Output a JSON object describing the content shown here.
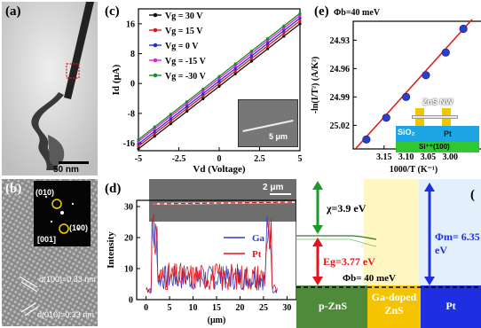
{
  "panels": {
    "a": {
      "label": "(a)",
      "scalebar": "50 nm"
    },
    "b": {
      "label": "(b)",
      "spots": [
        "(010)",
        "(100)"
      ],
      "zone": "[001]",
      "d1": "d(100)=0.33 nm",
      "d2": "d(010)=0.33 nm"
    },
    "c": {
      "label": "(c)",
      "inset_scalebar": "5 μm"
    },
    "d": {
      "label": "(d)",
      "scalebar": "2 μm"
    },
    "e": {
      "label": "(e)",
      "barrier": "Φb=40 meV",
      "inset": {
        "nw": "ZnS NW",
        "pt": "Pt",
        "sio2": "SiO₂",
        "si": "Si⁺⁺(100)"
      }
    },
    "f": {
      "label": "(",
      "chi": "χ=3.9 eV",
      "eg": "Eg=3.77 eV",
      "phib": "Φb= 40 meV",
      "phim": "Φm= 6.35 eV",
      "materials": [
        "p-ZnS",
        "Ga-doped\nZnS",
        "Pt"
      ]
    }
  },
  "colors": {
    "ga": "#2a3cd1",
    "pt": "#e0161a",
    "fit": "#e02020",
    "point": "#2a3fcf"
  },
  "chart_data": [
    {
      "type": "line",
      "xlabel": "Vd (Voltage)",
      "ylabel": "Id (μA)",
      "xlim": [
        -5,
        5
      ],
      "ylim": [
        -18,
        20
      ],
      "xticks": [
        -5,
        -2.5,
        0,
        2.5,
        5
      ],
      "xtick_labels": [
        "-5",
        "-2.5",
        "0",
        "2.5",
        "5"
      ],
      "yticks": [
        16,
        8,
        0,
        -8,
        -16
      ],
      "ytick_labels": [
        "16",
        "8",
        "0",
        "-8",
        "-16"
      ],
      "series": [
        {
          "name": "Vg = 30 V",
          "color": "#111111",
          "x": [
            -5,
            5
          ],
          "y": [
            -17.5,
            16
          ]
        },
        {
          "name": "Vg = 15 V",
          "color": "#e0161a",
          "x": [
            -5,
            5
          ],
          "y": [
            -16.8,
            16.8
          ]
        },
        {
          "name": "Vg = 0 V",
          "color": "#1f2fd6",
          "x": [
            -5,
            5
          ],
          "y": [
            -16.2,
            17.5
          ]
        },
        {
          "name": "Vg = -15 V",
          "color": "#e11fe0",
          "x": [
            -5,
            5
          ],
          "y": [
            -15.5,
            18.2
          ]
        },
        {
          "name": "Vg = -30 V",
          "color": "#1c8a2a",
          "x": [
            -5,
            5
          ],
          "y": [
            -15,
            18.8
          ]
        }
      ]
    },
    {
      "type": "line",
      "xlabel": "(μm)",
      "ylabel": "Intensity",
      "xlim": [
        -2,
        32
      ],
      "ylim": [
        0,
        32
      ],
      "xticks": [
        0,
        5,
        10,
        15,
        20,
        25,
        30
      ],
      "xtick_labels": [
        "0",
        "5",
        "10",
        "15",
        "20",
        "25",
        "30"
      ],
      "yticks": [
        0,
        10,
        20,
        30
      ],
      "ytick_labels": [
        "0",
        "10",
        "20",
        "30"
      ],
      "legend": "right",
      "series": [
        {
          "name": "Ga",
          "color": "#2a3cd1"
        },
        {
          "name": "Pt",
          "color": "#e0161a"
        }
      ]
    },
    {
      "type": "scatter",
      "xlabel": "1000/T (K⁻¹)",
      "ylabel": "-ln(I/T²) (A/K²)",
      "xlim": [
        3.22,
        2.93
      ],
      "ylim": [
        25.045,
        24.91
      ],
      "xticks": [
        3.15,
        3.1,
        3.05,
        3.0
      ],
      "xtick_labels": [
        "3.15",
        "3.10",
        "3.05",
        "3.00"
      ],
      "yticks": [
        24.93,
        24.96,
        24.99,
        25.02
      ],
      "ytick_labels": [
        "24.93",
        "24.96",
        "24.99",
        "25.02"
      ],
      "points": {
        "x": [
          3.19,
          3.145,
          3.1,
          3.055,
          3.01,
          2.97
        ],
        "y": [
          25.035,
          25.012,
          24.99,
          24.967,
          24.943,
          24.918
        ]
      },
      "fit": {
        "x": [
          3.215,
          2.95
        ],
        "y": [
          25.045,
          24.908
        ]
      }
    }
  ]
}
